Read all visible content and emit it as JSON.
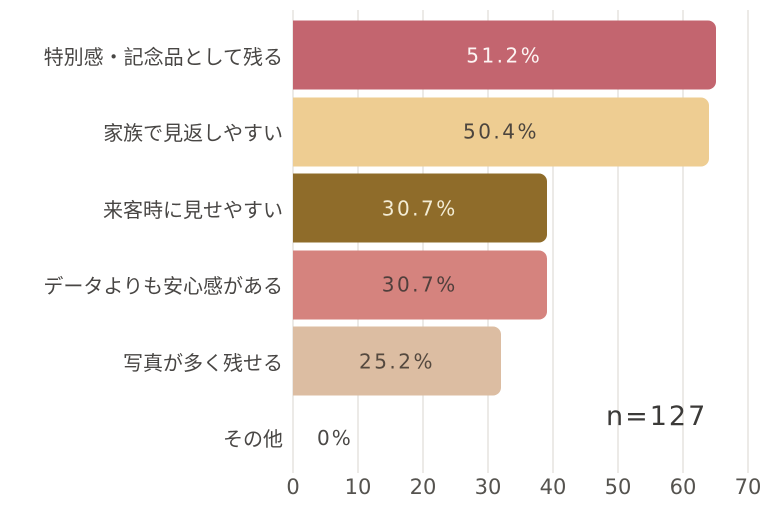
{
  "chart_data": {
    "type": "bar",
    "orientation": "horizontal",
    "title": "",
    "xlabel": "",
    "ylabel": "",
    "categories": [
      "特別感・記念品として残る",
      "家族で見返しやすい",
      "来客時に見せやすい",
      "データよりも安心感がある",
      "写真が多く残せる",
      "その他"
    ],
    "values_percent": [
      51.2,
      50.4,
      30.7,
      30.7,
      25.2,
      0
    ],
    "values_count": [
      65,
      64,
      39,
      39,
      32,
      0
    ],
    "bar_labels": [
      "51.2%",
      "50.4%",
      "30.7%",
      "30.7%",
      "25.2%",
      "0%"
    ],
    "xlim": [
      0,
      70
    ],
    "xticks": [
      "0",
      "10",
      "20",
      "30",
      "40",
      "50",
      "60",
      "70"
    ],
    "xtick_values": [
      0,
      10,
      20,
      30,
      40,
      50,
      60,
      70
    ],
    "grid": "vertical",
    "legend": "none",
    "annotation": "n=127",
    "sample_size": 127,
    "bar_colors": [
      "#c3656f",
      "#eecd92",
      "#8f6c2a",
      "#d5837e",
      "#dcbda2",
      "#ffffff"
    ],
    "bar_label_colors": [
      "#fdf4f3",
      "#4c453e",
      "#f3ecd4",
      "#503f3c",
      "#55493f",
      "#4a4846"
    ],
    "gridline_color": "#eceae7",
    "category_label_color": "#484644",
    "tick_label_color": "#55534f"
  }
}
